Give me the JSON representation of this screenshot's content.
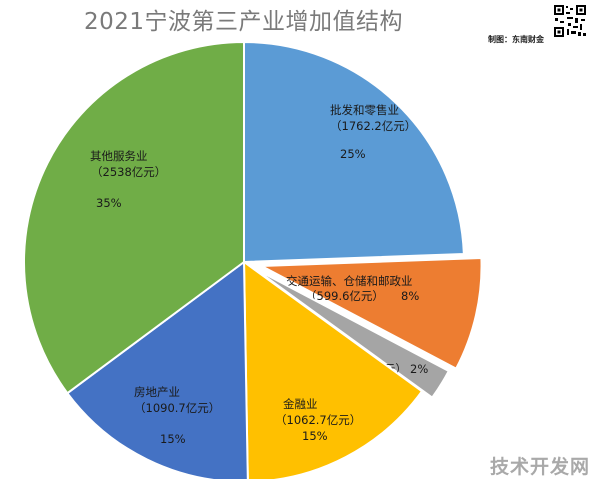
{
  "title": "2021宁波第三产业增加值结构",
  "credit": "制图：东南财金",
  "watermark": "技术开发网",
  "chart_data": {
    "type": "pie",
    "title": "2021宁波第三产业增加值结构",
    "unit": "亿元",
    "slices": [
      {
        "name": "批发和零售业",
        "value_label": "（1762.2亿元）",
        "value": 1762.2,
        "percent_label": "25%",
        "color": "#5b9bd5"
      },
      {
        "name": "交通运输、仓储和邮政业",
        "value_label": "（599.6亿元）",
        "value": 599.6,
        "percent_label": "8%",
        "color": "#ed7d31"
      },
      {
        "name": "住宿餐饮业",
        "value_label": "（163.9亿元）",
        "value": 163.9,
        "percent_label": "2%",
        "color": "#a5a5a5"
      },
      {
        "name": "金融业",
        "value_label": "（1062.7亿元）",
        "value": 1062.7,
        "percent_label": "15%",
        "color": "#ffc000"
      },
      {
        "name": "房地产业",
        "value_label": "（1090.7亿元）",
        "value": 1090.7,
        "percent_label": "15%",
        "color": "#4472c4"
      },
      {
        "name": "其他服务业",
        "value_label": "（2538亿元）",
        "value": 2538,
        "percent_label": "35%",
        "color": "#70ad47"
      }
    ]
  }
}
